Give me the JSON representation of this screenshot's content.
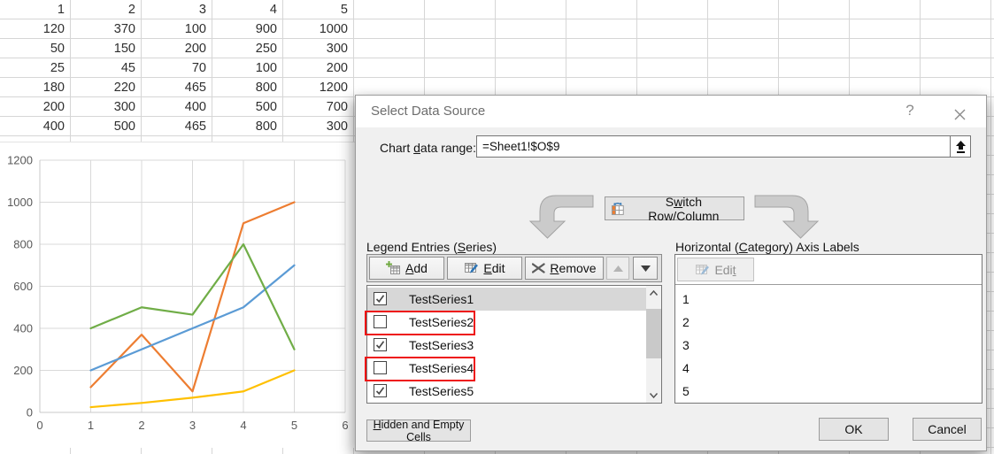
{
  "spreadsheet": {
    "rows": [
      [
        1,
        2,
        3,
        4,
        5
      ],
      [
        120,
        370,
        100,
        900,
        1000
      ],
      [
        50,
        150,
        200,
        250,
        300
      ],
      [
        25,
        45,
        70,
        100,
        200
      ],
      [
        180,
        220,
        465,
        800,
        1200
      ],
      [
        200,
        300,
        400,
        500,
        700
      ],
      [
        400,
        500,
        465,
        800,
        300
      ]
    ]
  },
  "chart_data": {
    "type": "line",
    "x": [
      1,
      2,
      3,
      4,
      5
    ],
    "series": [
      {
        "id": "orange",
        "name": "TestSeries1",
        "color": "#ED7D31",
        "values": [
          120,
          370,
          100,
          900,
          1000
        ]
      },
      {
        "id": "yellow",
        "name": "TestSeries3",
        "color": "#FFC000",
        "values": [
          25,
          45,
          70,
          100,
          200
        ]
      },
      {
        "id": "blue",
        "name": "TestSeries5",
        "color": "#5B9BD5",
        "values": [
          200,
          300,
          400,
          500,
          700
        ]
      },
      {
        "id": "green",
        "name": "",
        "color": "#70AD47",
        "values": [
          400,
          500,
          465,
          800,
          300
        ]
      }
    ],
    "title": "",
    "xlabel": "",
    "ylabel": "",
    "xlim": [
      0,
      6
    ],
    "ylim": [
      0,
      1200
    ],
    "x_ticks": [
      0,
      1,
      2,
      3,
      4,
      5,
      6
    ],
    "y_ticks": [
      0,
      200,
      400,
      600,
      800,
      1000,
      1200
    ],
    "grid": true,
    "legend": "none"
  },
  "dialog": {
    "title": "Select Data Source",
    "help_icon": "?",
    "icons": {
      "close": "x-mark",
      "collapse_range": "collapse-up-arrow",
      "add": "table-plus",
      "edit": "table-pencil",
      "remove": "x-mark",
      "move_up": "triangle-up",
      "move_down": "triangle-down",
      "switch": "table-swap-arrows",
      "scroll_up": "chevron-up",
      "scroll_down": "chevron-down"
    },
    "range": {
      "label": {
        "text": "Chart data range:",
        "accel_index": 6
      },
      "value": "=Sheet1!$O$9"
    },
    "switch_button": {
      "text": "Switch Row/Column",
      "accel_index": 1
    },
    "legend": {
      "label": {
        "text": "Legend Entries (Series)",
        "accel_index": 16
      },
      "buttons": {
        "add": {
          "text": "Add",
          "accel_index": 0
        },
        "edit": {
          "text": "Edit",
          "accel_index": 0
        },
        "remove": {
          "text": "Remove",
          "accel_index": 0
        }
      },
      "series": [
        {
          "label": "TestSeries1",
          "checked": true,
          "selected": true,
          "flagged": false
        },
        {
          "label": "TestSeries2",
          "checked": false,
          "selected": false,
          "flagged": true
        },
        {
          "label": "TestSeries3",
          "checked": true,
          "selected": false,
          "flagged": false
        },
        {
          "label": "TestSeries4",
          "checked": false,
          "selected": false,
          "flagged": true
        },
        {
          "label": "TestSeries5",
          "checked": true,
          "selected": false,
          "flagged": false
        }
      ]
    },
    "axis": {
      "label": {
        "text": "Horizontal (Category) Axis Labels",
        "accel_index": 12
      },
      "edit_button": {
        "text": "Edit",
        "accel_index": 3
      },
      "items": [
        "1",
        "2",
        "3",
        "4",
        "5"
      ]
    },
    "footer": {
      "hidden_button": {
        "text": "Hidden and Empty Cells",
        "accel_index": 0
      },
      "ok": "OK",
      "cancel": "Cancel"
    },
    "colors": {
      "annotation_red": "#ee1414",
      "selection_gray": "#d7d7d7",
      "dialog_bg": "#f0f0f0"
    }
  }
}
